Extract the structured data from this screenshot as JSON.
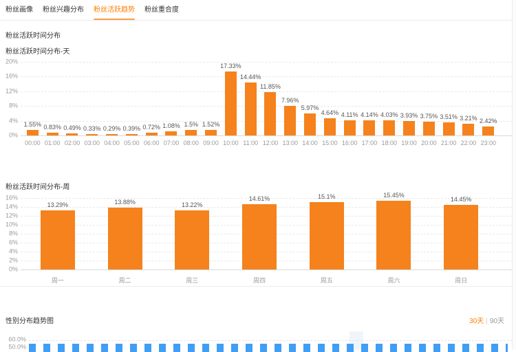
{
  "tabs": [
    {
      "label": "粉丝画像",
      "active": false
    },
    {
      "label": "粉丝兴趣分布",
      "active": false
    },
    {
      "label": "粉丝活跃趋势",
      "active": true
    },
    {
      "label": "粉丝重合度",
      "active": false
    }
  ],
  "section_title": "粉丝活跃时间分布",
  "gender_section": {
    "title": "性别分布趋势图",
    "period_options": [
      {
        "label": "30天",
        "selected": true
      },
      {
        "label": "90天",
        "selected": false
      }
    ],
    "separator": "|"
  },
  "colors": {
    "bar_orange": "#f5821c",
    "active_tab_orange": "#ff7d00",
    "line_blue": "#419ef5"
  },
  "chart_data": [
    {
      "id": "hourly",
      "type": "bar",
      "title": "粉丝活跃时间分布-天",
      "categories": [
        "00:00",
        "01:00",
        "02:00",
        "03:00",
        "04:00",
        "05:00",
        "06:00",
        "07:00",
        "08:00",
        "09:00",
        "10:00",
        "11:00",
        "12:00",
        "13:00",
        "14:00",
        "15:00",
        "16:00",
        "17:00",
        "18:00",
        "19:00",
        "20:00",
        "21:00",
        "22:00",
        "23:00"
      ],
      "values": [
        1.55,
        0.83,
        0.49,
        0.33,
        0.29,
        0.39,
        0.72,
        1.08,
        1.5,
        1.52,
        17.33,
        14.44,
        11.85,
        7.96,
        5.97,
        4.64,
        4.11,
        4.14,
        4.03,
        3.93,
        3.75,
        3.51,
        3.21,
        2.42
      ],
      "value_label_suffix": "%",
      "ylim": [
        0,
        20
      ],
      "yticks": [
        "20%",
        "16%",
        "12%",
        "8%",
        "4%",
        "0%"
      ],
      "grid": true,
      "bar_color": "#f5821c"
    },
    {
      "id": "weekly",
      "type": "bar",
      "title": "粉丝活跃时间分布-周",
      "categories": [
        "周一",
        "周二",
        "周三",
        "周四",
        "周五",
        "周六",
        "周日"
      ],
      "values": [
        13.29,
        13.88,
        13.22,
        14.61,
        15.1,
        15.45,
        14.45
      ],
      "value_label_suffix": "%",
      "ylim": [
        0,
        16
      ],
      "yticks": [
        "16%",
        "14%",
        "12%",
        "10%",
        "8%",
        "6%",
        "4%",
        "2%",
        "0%"
      ],
      "grid": true,
      "bar_color": "#f5821c"
    },
    {
      "id": "gender_trend",
      "type": "line",
      "title": "性别分布趋势图",
      "yticks_visible": [
        "60.0%",
        "50.0%"
      ],
      "series": [
        {
          "name": "visible-dashed-series",
          "color": "#419ef5",
          "style": "dashed",
          "approx_visible_value_percent": 50.5
        }
      ],
      "clipped_by_viewport": true
    }
  ]
}
